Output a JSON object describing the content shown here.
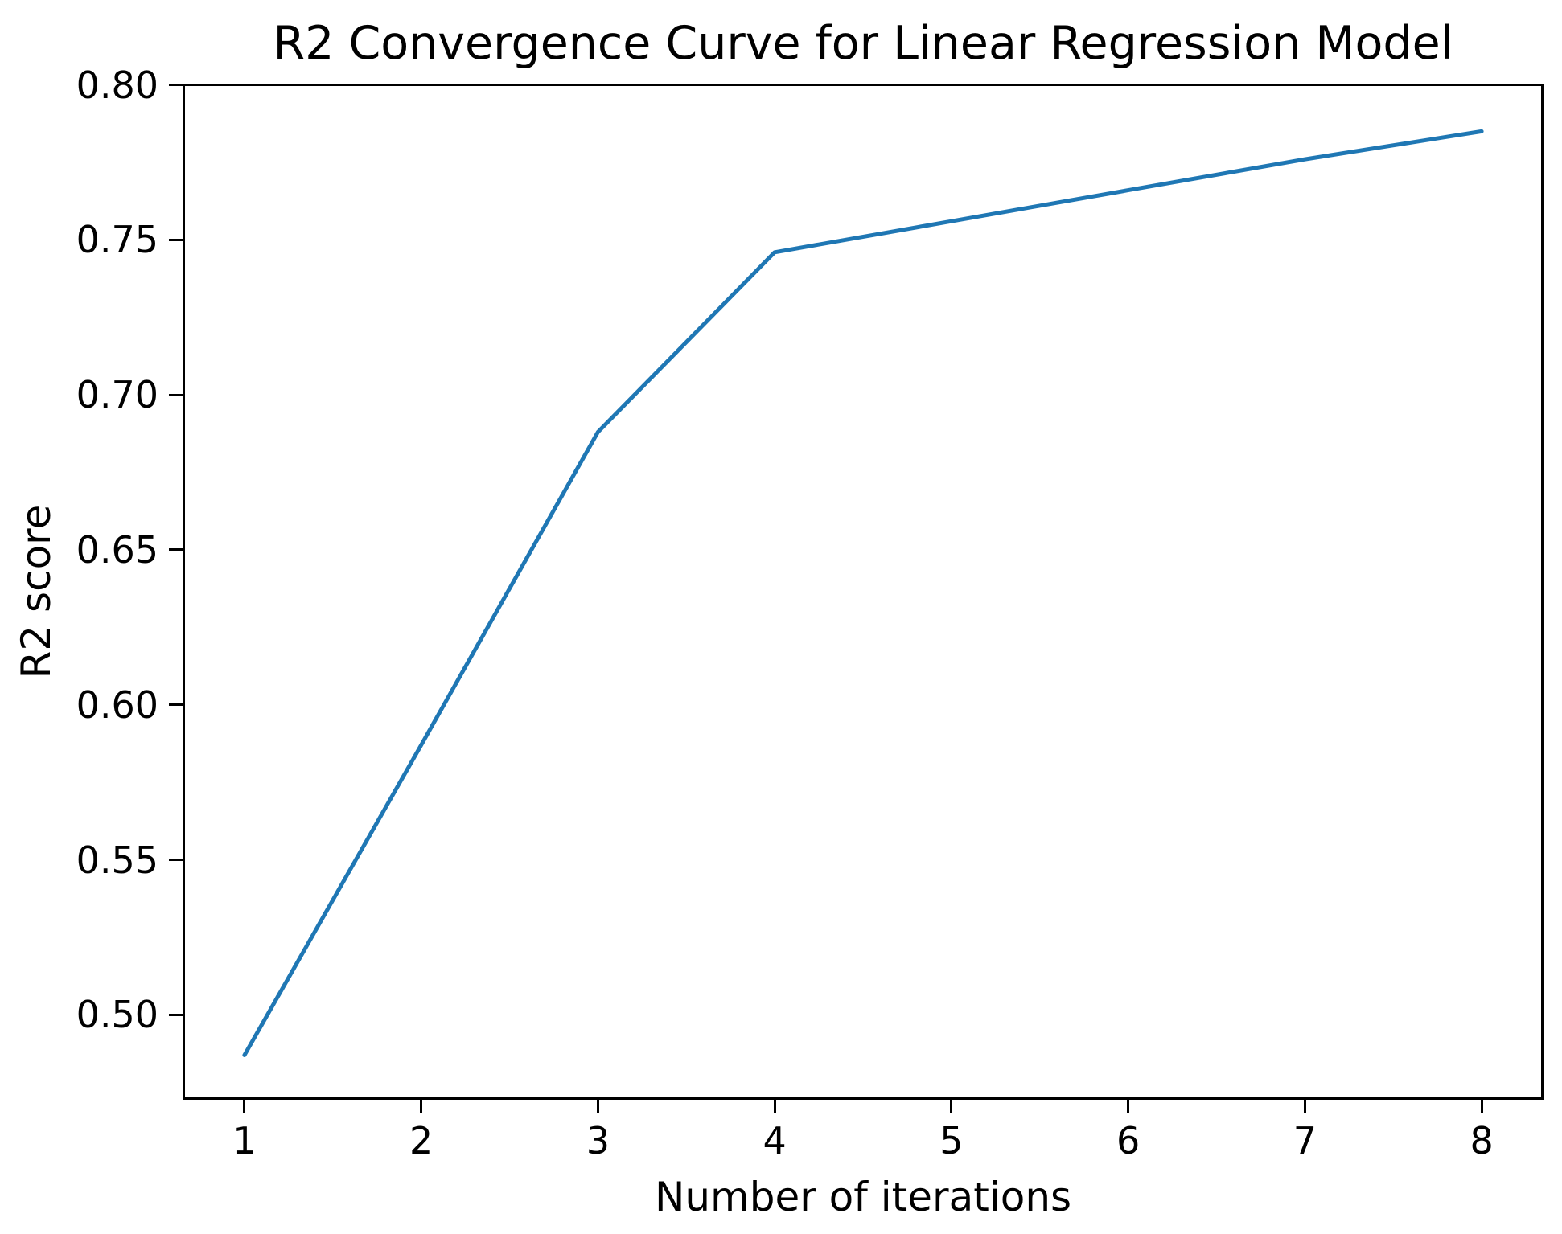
{
  "figure": {
    "background": "#ffffff",
    "text_color": "#000000"
  },
  "chart_data": {
    "type": "line",
    "title": "R2 Convergence Curve for Linear Regression Model",
    "xlabel": "Number of iterations",
    "ylabel": "R2 score",
    "x": [
      1,
      2,
      3,
      4,
      5,
      6,
      7,
      8
    ],
    "y": [
      0.487,
      0.587,
      0.688,
      0.746,
      0.756,
      0.766,
      0.776,
      0.785
    ],
    "line_color": "#1f77b4",
    "xlim": [
      0.65,
      8.35
    ],
    "ylim": [
      0.4726,
      0.8004
    ],
    "xticks": [
      1,
      2,
      3,
      4,
      5,
      6,
      7,
      8
    ],
    "xtick_labels": [
      "1",
      "2",
      "3",
      "4",
      "5",
      "6",
      "7",
      "8"
    ],
    "yticks": [
      0.5,
      0.55,
      0.6,
      0.65,
      0.7,
      0.75,
      0.8
    ],
    "ytick_labels": [
      "0.50",
      "0.55",
      "0.60",
      "0.65",
      "0.70",
      "0.75",
      "0.80"
    ],
    "grid": false,
    "legend": "none"
  }
}
